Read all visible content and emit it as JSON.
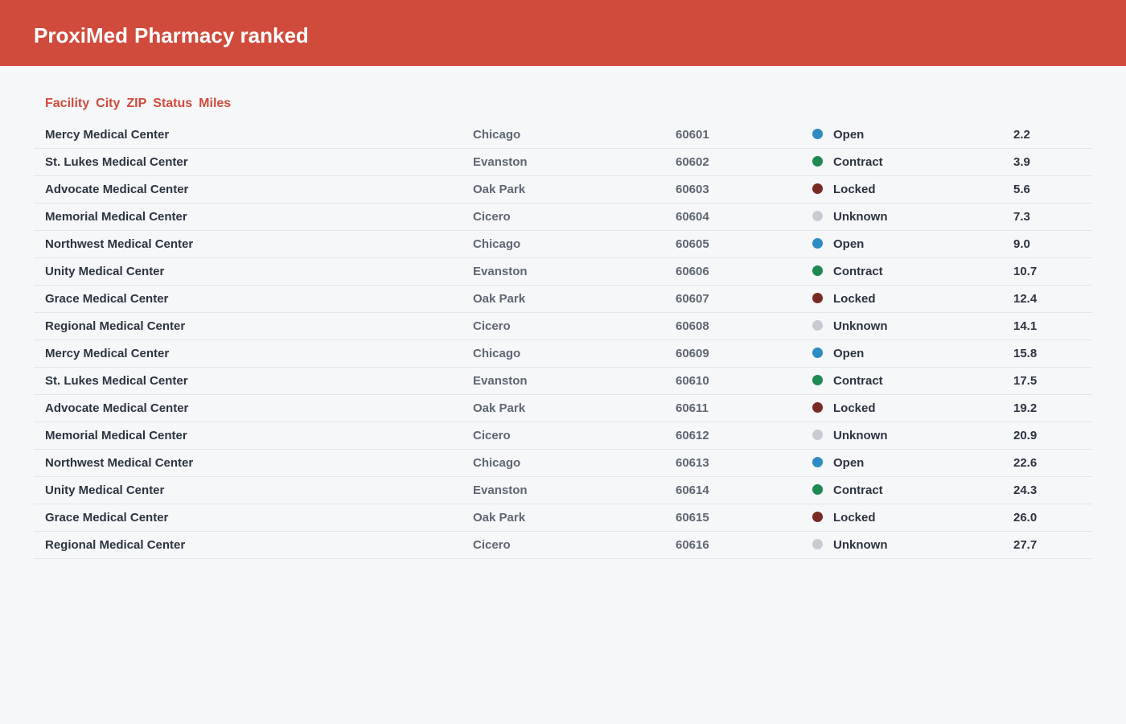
{
  "header": {
    "brand": "ProxiMed",
    "title": "Pharmacy ranked"
  },
  "table": {
    "columns": [
      "Facility",
      "City",
      "ZIP",
      "Status",
      "Miles"
    ],
    "status_colors": {
      "Open": "#2e8bc4",
      "Contract": "#1e8a52",
      "Locked": "#7a2a24",
      "Unknown": "#c8ccd2"
    },
    "rows": [
      [
        "Mercy Medical Center",
        "Chicago",
        "60601",
        "Open",
        "2.2"
      ],
      [
        "St. Lukes Medical Center",
        "Evanston",
        "60602",
        "Contract",
        "3.9"
      ],
      [
        "Advocate Medical Center",
        "Oak Park",
        "60603",
        "Locked",
        "5.6"
      ],
      [
        "Memorial Medical Center",
        "Cicero",
        "60604",
        "Unknown",
        "7.3"
      ],
      [
        "Northwest Medical Center",
        "Chicago",
        "60605",
        "Open",
        "9.0"
      ],
      [
        "Unity Medical Center",
        "Evanston",
        "60606",
        "Contract",
        "10.7"
      ],
      [
        "Grace Medical Center",
        "Oak Park",
        "60607",
        "Locked",
        "12.4"
      ],
      [
        "Regional Medical Center",
        "Cicero",
        "60608",
        "Unknown",
        "14.1"
      ],
      [
        "Mercy Medical Center",
        "Chicago",
        "60609",
        "Open",
        "15.8"
      ],
      [
        "St. Lukes Medical Center",
        "Evanston",
        "60610",
        "Contract",
        "17.5"
      ],
      [
        "Advocate Medical Center",
        "Oak Park",
        "60611",
        "Locked",
        "19.2"
      ],
      [
        "Memorial Medical Center",
        "Cicero",
        "60612",
        "Unknown",
        "20.9"
      ],
      [
        "Northwest Medical Center",
        "Chicago",
        "60613",
        "Open",
        "22.6"
      ],
      [
        "Unity Medical Center",
        "Evanston",
        "60614",
        "Contract",
        "24.3"
      ],
      [
        "Grace Medical Center",
        "Oak Park",
        "60615",
        "Locked",
        "26.0"
      ],
      [
        "Regional Medical Center",
        "Cicero",
        "60616",
        "Unknown",
        "27.7"
      ]
    ]
  }
}
